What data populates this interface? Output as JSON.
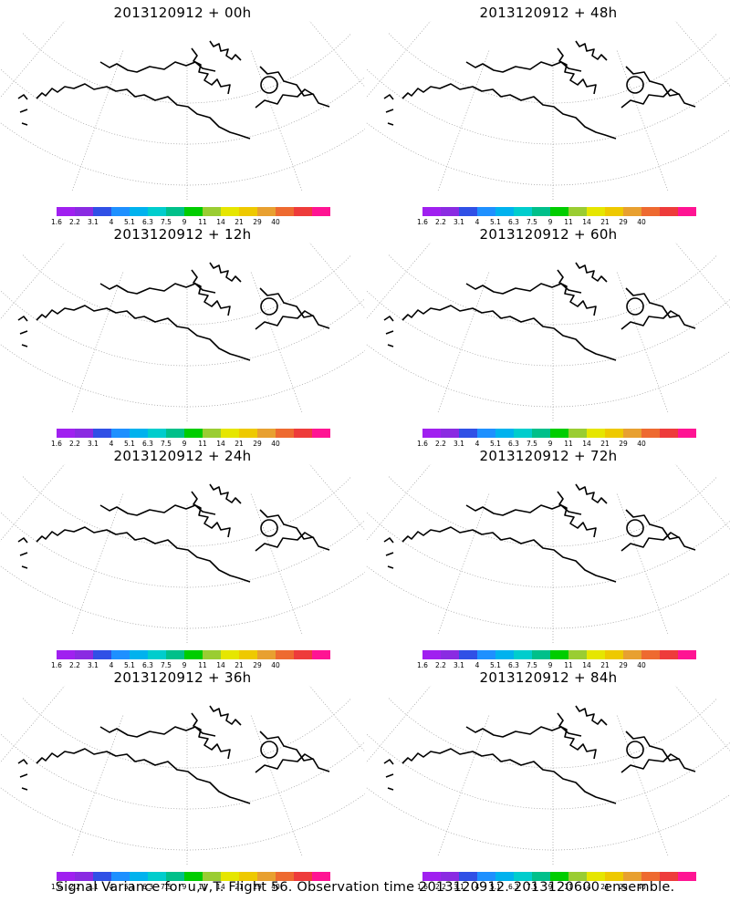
{
  "panels": [
    {
      "title": "2013120912 + 00h",
      "intensity": 0.05
    },
    {
      "title": "2013120912 + 48h",
      "intensity": 0.58
    },
    {
      "title": "2013120912 + 12h",
      "intensity": 0.18
    },
    {
      "title": "2013120912 + 60h",
      "intensity": 0.68
    },
    {
      "title": "2013120912 + 24h",
      "intensity": 0.3
    },
    {
      "title": "2013120912 + 72h",
      "intensity": 0.8
    },
    {
      "title": "2013120912 + 36h",
      "intensity": 0.44
    },
    {
      "title": "2013120912 + 84h",
      "intensity": 0.9
    }
  ],
  "colorbar": {
    "labels": [
      "1.6",
      "2.2",
      "3.1",
      "4",
      "5.1",
      "6.3",
      "7.5",
      "9",
      "11",
      "14",
      "21",
      "29",
      "40"
    ],
    "colors": [
      "#a020f0",
      "#8a2be2",
      "#3050e6",
      "#1e90ff",
      "#00b2ee",
      "#00cdcd",
      "#00c08a",
      "#00cd00",
      "#9acd32",
      "#e6e600",
      "#eec900",
      "#e8a030",
      "#ee6a30",
      "#ee3b3b",
      "#ff1493"
    ]
  },
  "footer": "Signal Variance for u,v,T. Flight 56. Observation time 2013120912. 2013120600 ensemble."
}
